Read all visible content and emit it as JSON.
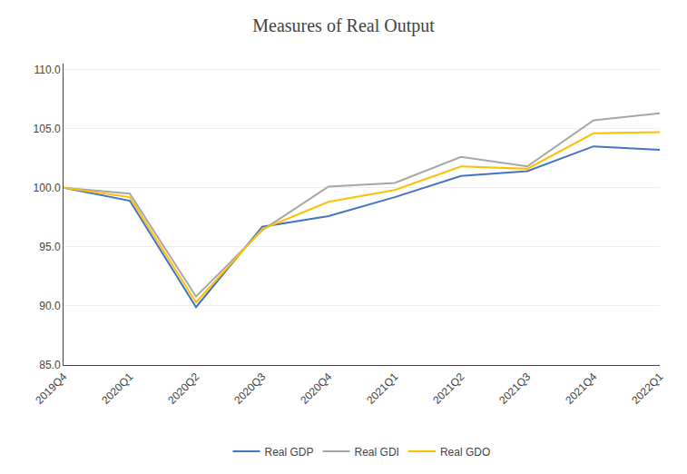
{
  "chart_data": {
    "type": "line",
    "title": "Measures of Real Output",
    "categories": [
      "2019Q4",
      "2020Q1",
      "2020Q2",
      "2020Q3",
      "2020Q4",
      "2021Q1",
      "2021Q2",
      "2021Q3",
      "2021Q4",
      "2022Q1"
    ],
    "series": [
      {
        "name": "Real GDP",
        "color": "#4472c4",
        "values": [
          100.0,
          98.9,
          89.9,
          96.7,
          97.6,
          99.2,
          101.0,
          101.4,
          103.5,
          103.2
        ]
      },
      {
        "name": "Real GDI",
        "color": "#a6a6a6",
        "values": [
          100.0,
          99.5,
          90.8,
          96.4,
          100.1,
          100.4,
          102.6,
          101.8,
          105.7,
          106.3
        ]
      },
      {
        "name": "Real GDO",
        "color": "#ffc000",
        "values": [
          100.0,
          99.2,
          90.3,
          96.5,
          98.8,
          99.8,
          101.8,
          101.6,
          104.6,
          104.7
        ]
      }
    ],
    "ylim": [
      85.0,
      110.5
    ],
    "yticks": [
      {
        "value": 85.0,
        "label": "85.0"
      },
      {
        "value": 90.0,
        "label": "90.0"
      },
      {
        "value": 95.0,
        "label": "95.0"
      },
      {
        "value": 100.0,
        "label": "100.0"
      },
      {
        "value": 105.0,
        "label": "105.0"
      },
      {
        "value": 110.0,
        "label": "110.0"
      }
    ],
    "grid": true,
    "legend": "bottom"
  }
}
